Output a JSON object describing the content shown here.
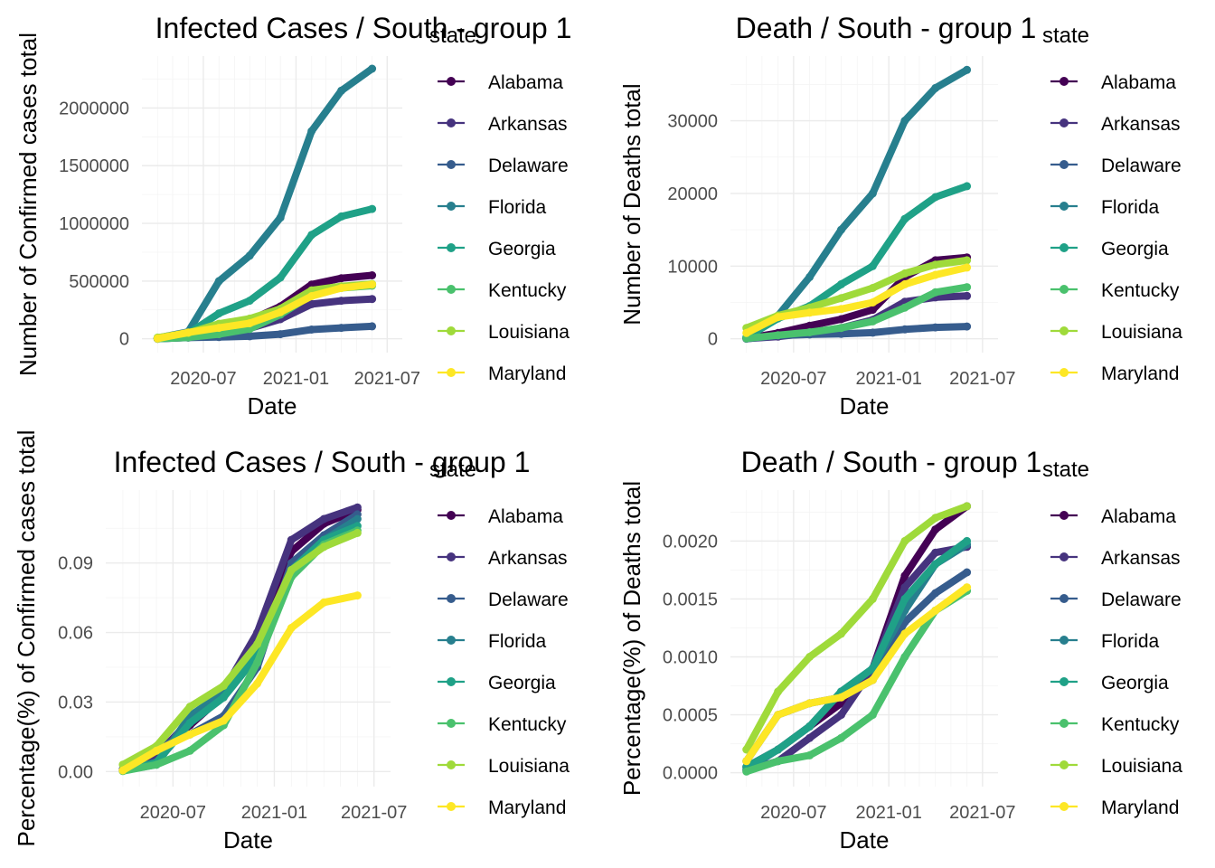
{
  "palette": {
    "Alabama": "#440154",
    "Arkansas": "#46337E",
    "Delaware": "#365C8D",
    "Florida": "#277F8E",
    "Georgia": "#1FA187",
    "Kentucky": "#4AC16D",
    "Louisiana": "#9FDA3A",
    "Maryland": "#FDE725"
  },
  "chart_data": [
    {
      "type": "line",
      "title": "Infected Cases / South - group 1",
      "xlabel": "Date",
      "ylabel": "Number of Confirmed cases total",
      "legend_title": "state",
      "legend_position": "right",
      "grid": true,
      "x_ticks": [
        "2020-07",
        "2021-01",
        "2021-07"
      ],
      "y_ticks": [
        {
          "value": 0,
          "label": "0"
        },
        {
          "value": 500000,
          "label": "500000"
        },
        {
          "value": 1000000,
          "label": "1000000"
        },
        {
          "value": 1500000,
          "label": "1500000"
        },
        {
          "value": 2000000,
          "label": "2000000"
        }
      ],
      "xlim": [
        "2020-03-01",
        "2021-07-31"
      ],
      "ylim": [
        -120000,
        2450000
      ],
      "x": [
        "2020-04-01",
        "2020-06-01",
        "2020-08-01",
        "2020-10-01",
        "2020-12-01",
        "2021-02-01",
        "2021-04-01",
        "2021-06-01"
      ],
      "series": [
        {
          "name": "Alabama",
          "values": [
            1000,
            20000,
            100000,
            160000,
            280000,
            470000,
            525000,
            550000
          ]
        },
        {
          "name": "Arkansas",
          "values": [
            500,
            12000,
            50000,
            90000,
            170000,
            300000,
            330000,
            345000
          ]
        },
        {
          "name": "Delaware",
          "values": [
            400,
            10000,
            15000,
            22000,
            40000,
            80000,
            95000,
            108000
          ]
        },
        {
          "name": "Florida",
          "values": [
            7000,
            60000,
            500000,
            720000,
            1050000,
            1800000,
            2150000,
            2340000
          ]
        },
        {
          "name": "Georgia",
          "values": [
            4000,
            45000,
            220000,
            330000,
            530000,
            900000,
            1060000,
            1125000
          ]
        },
        {
          "name": "Kentucky",
          "values": [
            700,
            12000,
            40000,
            85000,
            210000,
            380000,
            440000,
            460000
          ]
        },
        {
          "name": "Louisiana",
          "values": [
            10000,
            50000,
            130000,
            175000,
            260000,
            420000,
            455000,
            475000
          ]
        },
        {
          "name": "Maryland",
          "values": [
            2000,
            55000,
            95000,
            135000,
            230000,
            370000,
            440000,
            470000
          ]
        }
      ]
    },
    {
      "type": "line",
      "title": "Death / South - group 1",
      "xlabel": "Date",
      "ylabel": "Number of Deaths total",
      "legend_title": "state",
      "legend_position": "right",
      "grid": true,
      "x_ticks": [
        "2020-07",
        "2021-01",
        "2021-07"
      ],
      "y_ticks": [
        {
          "value": 0,
          "label": "0"
        },
        {
          "value": 10000,
          "label": "10000"
        },
        {
          "value": 20000,
          "label": "20000"
        },
        {
          "value": 30000,
          "label": "30000"
        }
      ],
      "xlim": [
        "2020-03-01",
        "2021-07-31"
      ],
      "ylim": [
        -1900,
        38900
      ],
      "x": [
        "2020-04-01",
        "2020-06-01",
        "2020-08-01",
        "2020-10-01",
        "2020-12-01",
        "2021-02-01",
        "2021-04-01",
        "2021-06-01"
      ],
      "series": [
        {
          "name": "Alabama",
          "values": [
            50,
            800,
            1800,
            2700,
            4000,
            8500,
            10800,
            11200
          ]
        },
        {
          "name": "Arkansas",
          "values": [
            30,
            300,
            800,
            1500,
            2600,
            5100,
            5700,
            5900
          ]
        },
        {
          "name": "Delaware",
          "values": [
            20,
            450,
            600,
            680,
            850,
            1300,
            1570,
            1700
          ]
        },
        {
          "name": "Florida",
          "values": [
            150,
            3200,
            8500,
            15000,
            20000,
            30000,
            34500,
            37000
          ]
        },
        {
          "name": "Georgia",
          "values": [
            200,
            2800,
            4500,
            7500,
            10000,
            16500,
            19500,
            21000
          ]
        },
        {
          "name": "Kentucky",
          "values": [
            50,
            500,
            900,
            1500,
            2400,
            4300,
            6400,
            7100
          ]
        },
        {
          "name": "Louisiana",
          "values": [
            1500,
            3200,
            4300,
            5600,
            7000,
            9000,
            10200,
            10800
          ]
        },
        {
          "name": "Maryland",
          "values": [
            800,
            3000,
            3600,
            4100,
            5000,
            7500,
            8800,
            9800
          ]
        }
      ]
    },
    {
      "type": "line",
      "title": "Infected Cases / South - group 1",
      "xlabel": "Date",
      "ylabel": "Percentage(%) of Confirmed cases total",
      "legend_title": "state",
      "legend_position": "right",
      "grid": true,
      "x_ticks": [
        "2020-07",
        "2021-01",
        "2021-07"
      ],
      "y_ticks": [
        {
          "value": 0,
          "label": "0.00"
        },
        {
          "value": 0.03,
          "label": "0.03"
        },
        {
          "value": 0.06,
          "label": "0.06"
        },
        {
          "value": 0.09,
          "label": "0.09"
        }
      ],
      "xlim": [
        "2020-03-01",
        "2021-07-31"
      ],
      "ylim": [
        -0.0065,
        0.1215
      ],
      "x": [
        "2020-04-01",
        "2020-06-01",
        "2020-08-01",
        "2020-10-01",
        "2020-12-01",
        "2021-02-01",
        "2021-04-01",
        "2021-06-01"
      ],
      "series": [
        {
          "name": "Alabama",
          "values": [
            0.001,
            0.008,
            0.02,
            0.033,
            0.058,
            0.095,
            0.107,
            0.113
          ]
        },
        {
          "name": "Arkansas",
          "values": [
            0.0005,
            0.007,
            0.022,
            0.035,
            0.06,
            0.1,
            0.109,
            0.114
          ]
        },
        {
          "name": "Delaware",
          "values": [
            0.001,
            0.01,
            0.016,
            0.024,
            0.045,
            0.09,
            0.102,
            0.111
          ]
        },
        {
          "name": "Florida",
          "values": [
            0.0004,
            0.003,
            0.024,
            0.034,
            0.05,
            0.085,
            0.1,
            0.109
          ]
        },
        {
          "name": "Georgia",
          "values": [
            0.0004,
            0.004,
            0.021,
            0.032,
            0.05,
            0.087,
            0.1,
            0.106
          ]
        },
        {
          "name": "Kentucky",
          "values": [
            0.0002,
            0.003,
            0.009,
            0.02,
            0.047,
            0.084,
            0.098,
            0.104
          ]
        },
        {
          "name": "Louisiana",
          "values": [
            0.003,
            0.011,
            0.028,
            0.037,
            0.055,
            0.087,
            0.097,
            0.103
          ]
        },
        {
          "name": "Maryland",
          "values": [
            0.0005,
            0.009,
            0.016,
            0.022,
            0.038,
            0.062,
            0.073,
            0.076
          ]
        }
      ]
    },
    {
      "type": "line",
      "title": "Death / South - group 1",
      "xlabel": "Date",
      "ylabel": "Percentage(%) of Deaths total",
      "legend_title": "state",
      "legend_position": "right",
      "grid": true,
      "x_ticks": [
        "2020-07",
        "2021-01",
        "2021-07"
      ],
      "y_ticks": [
        {
          "value": 0,
          "label": "0.0000"
        },
        {
          "value": 0.0005,
          "label": "0.0005"
        },
        {
          "value": 0.001,
          "label": "0.0010"
        },
        {
          "value": 0.0015,
          "label": "0.0015"
        },
        {
          "value": 0.002,
          "label": "0.0020"
        }
      ],
      "xlim": [
        "2020-03-01",
        "2021-07-31"
      ],
      "ylim": [
        -0.00012,
        0.00244
      ],
      "x": [
        "2020-04-01",
        "2020-06-01",
        "2020-08-01",
        "2020-10-01",
        "2020-12-01",
        "2021-02-01",
        "2021-04-01",
        "2021-06-01"
      ],
      "series": [
        {
          "name": "Alabama",
          "values": [
            5e-05,
            0.0002,
            0.0004,
            0.0006,
            0.0009,
            0.0017,
            0.0021,
            0.0023
          ]
        },
        {
          "name": "Arkansas",
          "values": [
            2e-05,
            0.0001,
            0.0003,
            0.0005,
            0.0009,
            0.0016,
            0.0019,
            0.00195
          ]
        },
        {
          "name": "Delaware",
          "values": [
            0.0001,
            0.0005,
            0.0006,
            0.00065,
            0.0008,
            0.0013,
            0.00155,
            0.00173
          ]
        },
        {
          "name": "Florida",
          "values": [
            3e-05,
            0.0002,
            0.0004,
            0.0007,
            0.0009,
            0.0014,
            0.0018,
            0.00197
          ]
        },
        {
          "name": "Georgia",
          "values": [
            5e-05,
            0.0002,
            0.0004,
            0.0007,
            0.0009,
            0.0015,
            0.0018,
            0.002
          ]
        },
        {
          "name": "Kentucky",
          "values": [
            1e-05,
            0.0001,
            0.00015,
            0.0003,
            0.0005,
            0.001,
            0.0014,
            0.00157
          ]
        },
        {
          "name": "Louisiana",
          "values": [
            0.0002,
            0.0007,
            0.001,
            0.0012,
            0.0015,
            0.002,
            0.0022,
            0.0023
          ]
        },
        {
          "name": "Maryland",
          "values": [
            0.0001,
            0.0005,
            0.0006,
            0.00065,
            0.0008,
            0.0012,
            0.0014,
            0.0016
          ]
        }
      ]
    }
  ]
}
